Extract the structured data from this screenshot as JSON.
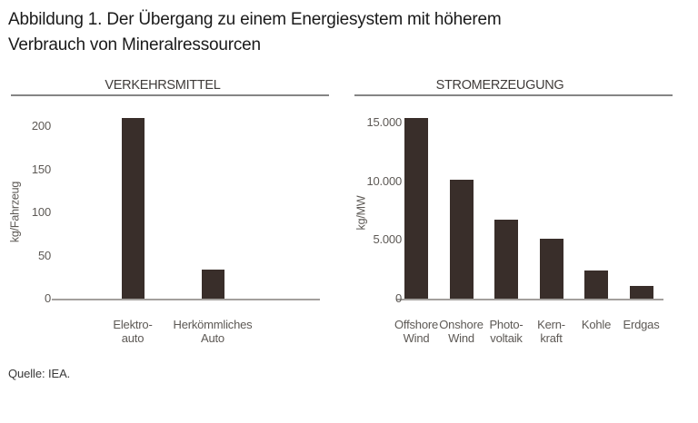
{
  "page": {
    "title_line1": "Abbildung 1. Der Übergang zu einem Energiesystem mit höherem",
    "title_line2": "Verbrauch von Mineralressourcen",
    "source": "Quelle: IEA."
  },
  "colors": {
    "bar": "#392e2a",
    "rule": "#858585",
    "axis_line": "#a3a09d",
    "title_text": "#1a1a1a",
    "heading_text": "#403c3a",
    "label_text": "#5d5955"
  },
  "chart_data": [
    {
      "type": "bar",
      "title": "VERKEHRSMITTEL",
      "xlabel": "",
      "ylabel": "kg/Fahrzeug",
      "categories": [
        "Elektro-\nauto",
        "Herkömmliches\nAuto"
      ],
      "values": [
        210,
        34
      ],
      "yticks": [
        0,
        50,
        100,
        150,
        200
      ],
      "ytick_labels": [
        "0",
        "50",
        "100",
        "150",
        "200"
      ],
      "ylim": [
        0,
        220
      ],
      "grid": false,
      "legend": false
    },
    {
      "type": "bar",
      "title": "STROMERZEUGUNG",
      "xlabel": "",
      "ylabel": "kg/MW",
      "categories": [
        "Offshore\nWind",
        "Onshore\nWind",
        "Photo-\nvoltaik",
        "Kern-\nkraft",
        "Kohle",
        "Erdgas"
      ],
      "values": [
        15400,
        10100,
        6700,
        5100,
        2400,
        1100
      ],
      "yticks": [
        0,
        5000,
        10000,
        15000
      ],
      "ytick_labels": [
        "0",
        "5.000",
        "10.000",
        "15.000"
      ],
      "ylim": [
        0,
        16500
      ],
      "grid": false,
      "legend": false
    }
  ]
}
